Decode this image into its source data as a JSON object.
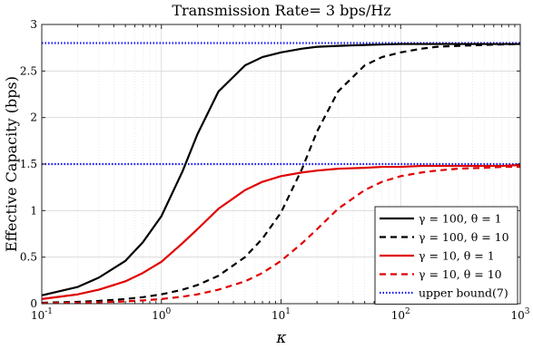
{
  "chart_data": {
    "type": "line",
    "title": "Transmission Rate= 3 bps/Hz",
    "xlabel": "κ",
    "ylabel": "Effective Capacity (bps)",
    "xscale": "log",
    "xlim": [
      0.1,
      1000
    ],
    "ylim": [
      0,
      3
    ],
    "x_tick_labels": [
      {
        "base": "10",
        "exp": "-1",
        "value": 0.1
      },
      {
        "base": "10",
        "exp": "0",
        "value": 1
      },
      {
        "base": "10",
        "exp": "1",
        "value": 10
      },
      {
        "base": "10",
        "exp": "2",
        "value": 100
      },
      {
        "base": "10",
        "exp": "3",
        "value": 1000
      }
    ],
    "y_ticks": [
      0,
      0.5,
      1,
      1.5,
      2,
      2.5,
      3
    ],
    "y_tick_labels": [
      "0",
      "0.5",
      "1",
      "1.5",
      "2",
      "2.5",
      "3"
    ],
    "grid": true,
    "legend_position": "bottom-right",
    "x": [
      0.1,
      0.2,
      0.3,
      0.5,
      0.7,
      1,
      1.5,
      2,
      3,
      5,
      7,
      10,
      15,
      20,
      30,
      50,
      70,
      100,
      150,
      200,
      300,
      500,
      700,
      1000
    ],
    "series": [
      {
        "name": "γ = 100, θ = 1",
        "color": "#000000",
        "dash": "solid",
        "values": [
          0.09,
          0.18,
          0.28,
          0.46,
          0.66,
          0.94,
          1.42,
          1.82,
          2.28,
          2.56,
          2.65,
          2.7,
          2.74,
          2.76,
          2.77,
          2.78,
          2.785,
          2.79,
          2.79,
          2.79,
          2.79,
          2.79,
          2.79,
          2.79
        ]
      },
      {
        "name": "γ = 100, θ = 10",
        "color": "#000000",
        "dash": "dashed",
        "values": [
          0.01,
          0.02,
          0.03,
          0.05,
          0.07,
          0.1,
          0.15,
          0.2,
          0.3,
          0.5,
          0.7,
          0.98,
          1.45,
          1.85,
          2.28,
          2.56,
          2.65,
          2.7,
          2.74,
          2.76,
          2.77,
          2.78,
          2.785,
          2.79
        ]
      },
      {
        "name": "γ = 10, θ = 1",
        "color": "#e00000",
        "dash": "solid",
        "values": [
          0.05,
          0.1,
          0.15,
          0.24,
          0.33,
          0.45,
          0.65,
          0.8,
          1.02,
          1.22,
          1.31,
          1.37,
          1.41,
          1.43,
          1.45,
          1.46,
          1.47,
          1.47,
          1.48,
          1.48,
          1.48,
          1.48,
          1.48,
          1.49
        ]
      },
      {
        "name": "γ = 10, θ = 10",
        "color": "#e00000",
        "dash": "dashed",
        "values": [
          0.005,
          0.01,
          0.015,
          0.025,
          0.035,
          0.05,
          0.075,
          0.1,
          0.15,
          0.24,
          0.33,
          0.46,
          0.65,
          0.8,
          1.02,
          1.22,
          1.31,
          1.37,
          1.41,
          1.43,
          1.45,
          1.46,
          1.47,
          1.47
        ]
      },
      {
        "name": "upper bound(7)",
        "color": "#1a1aff",
        "dash": "dotted",
        "values": [
          1.5,
          1.5,
          1.5,
          1.5,
          1.5,
          1.5,
          1.5,
          1.5,
          1.5,
          1.5,
          1.5,
          1.5,
          1.5,
          1.5,
          1.5,
          1.5,
          1.5,
          1.5,
          1.5,
          1.5,
          1.5,
          1.5,
          1.5,
          1.5
        ],
        "extra_values": [
          2.8,
          2.8,
          2.8,
          2.8,
          2.8,
          2.8,
          2.8,
          2.8,
          2.8,
          2.8,
          2.8,
          2.8,
          2.8,
          2.8,
          2.8,
          2.8,
          2.8,
          2.8,
          2.8,
          2.8,
          2.8,
          2.8,
          2.8,
          2.8
        ]
      }
    ]
  }
}
